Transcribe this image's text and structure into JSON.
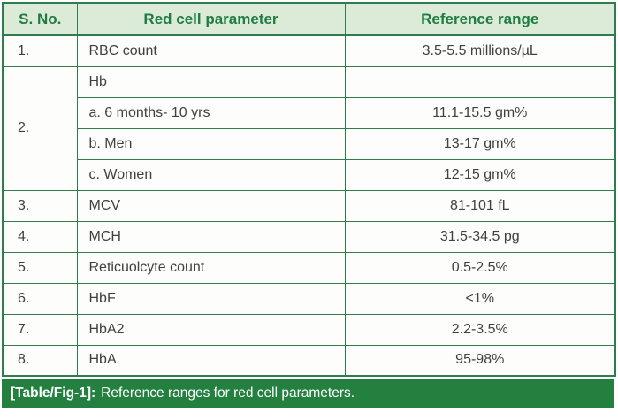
{
  "colors": {
    "accent_green": "#2f7c4e",
    "header_bg": "#dcebd8",
    "header_text": "#1f7c42",
    "caption_bg": "#23803f",
    "caption_text": "#ffffff",
    "body_text": "#3f4040"
  },
  "table": {
    "headers": {
      "sno": "S. No.",
      "parameter": "Red cell parameter",
      "reference": "Reference range"
    },
    "rows": [
      {
        "sno": "1.",
        "parameter": "RBC count",
        "reference": "3.5-5.5 millions/µL"
      },
      {
        "sno": "2.",
        "parameter": "Hb",
        "reference": ""
      },
      {
        "parameter": "a. 6 months- 10 yrs",
        "reference": "11.1-15.5 gm%"
      },
      {
        "parameter": "b. Men",
        "reference": "13-17 gm%"
      },
      {
        "parameter": "c. Women",
        "reference": "12-15 gm%"
      },
      {
        "sno": "3.",
        "parameter": "MCV",
        "reference": "81-101 fL"
      },
      {
        "sno": "4.",
        "parameter": "MCH",
        "reference": "31.5-34.5 pg"
      },
      {
        "sno": "5.",
        "parameter": "Reticuolcyte count",
        "reference": "0.5-2.5%"
      },
      {
        "sno": "6.",
        "parameter": "HbF",
        "reference": "<1%"
      },
      {
        "sno": "7.",
        "parameter": "HbA2",
        "reference": "2.2-3.5%"
      },
      {
        "sno": "8.",
        "parameter": "HbA",
        "reference": "95-98%"
      }
    ]
  },
  "caption": {
    "label": "[Table/Fig-1]:",
    "text": "Reference ranges for red cell parameters."
  }
}
